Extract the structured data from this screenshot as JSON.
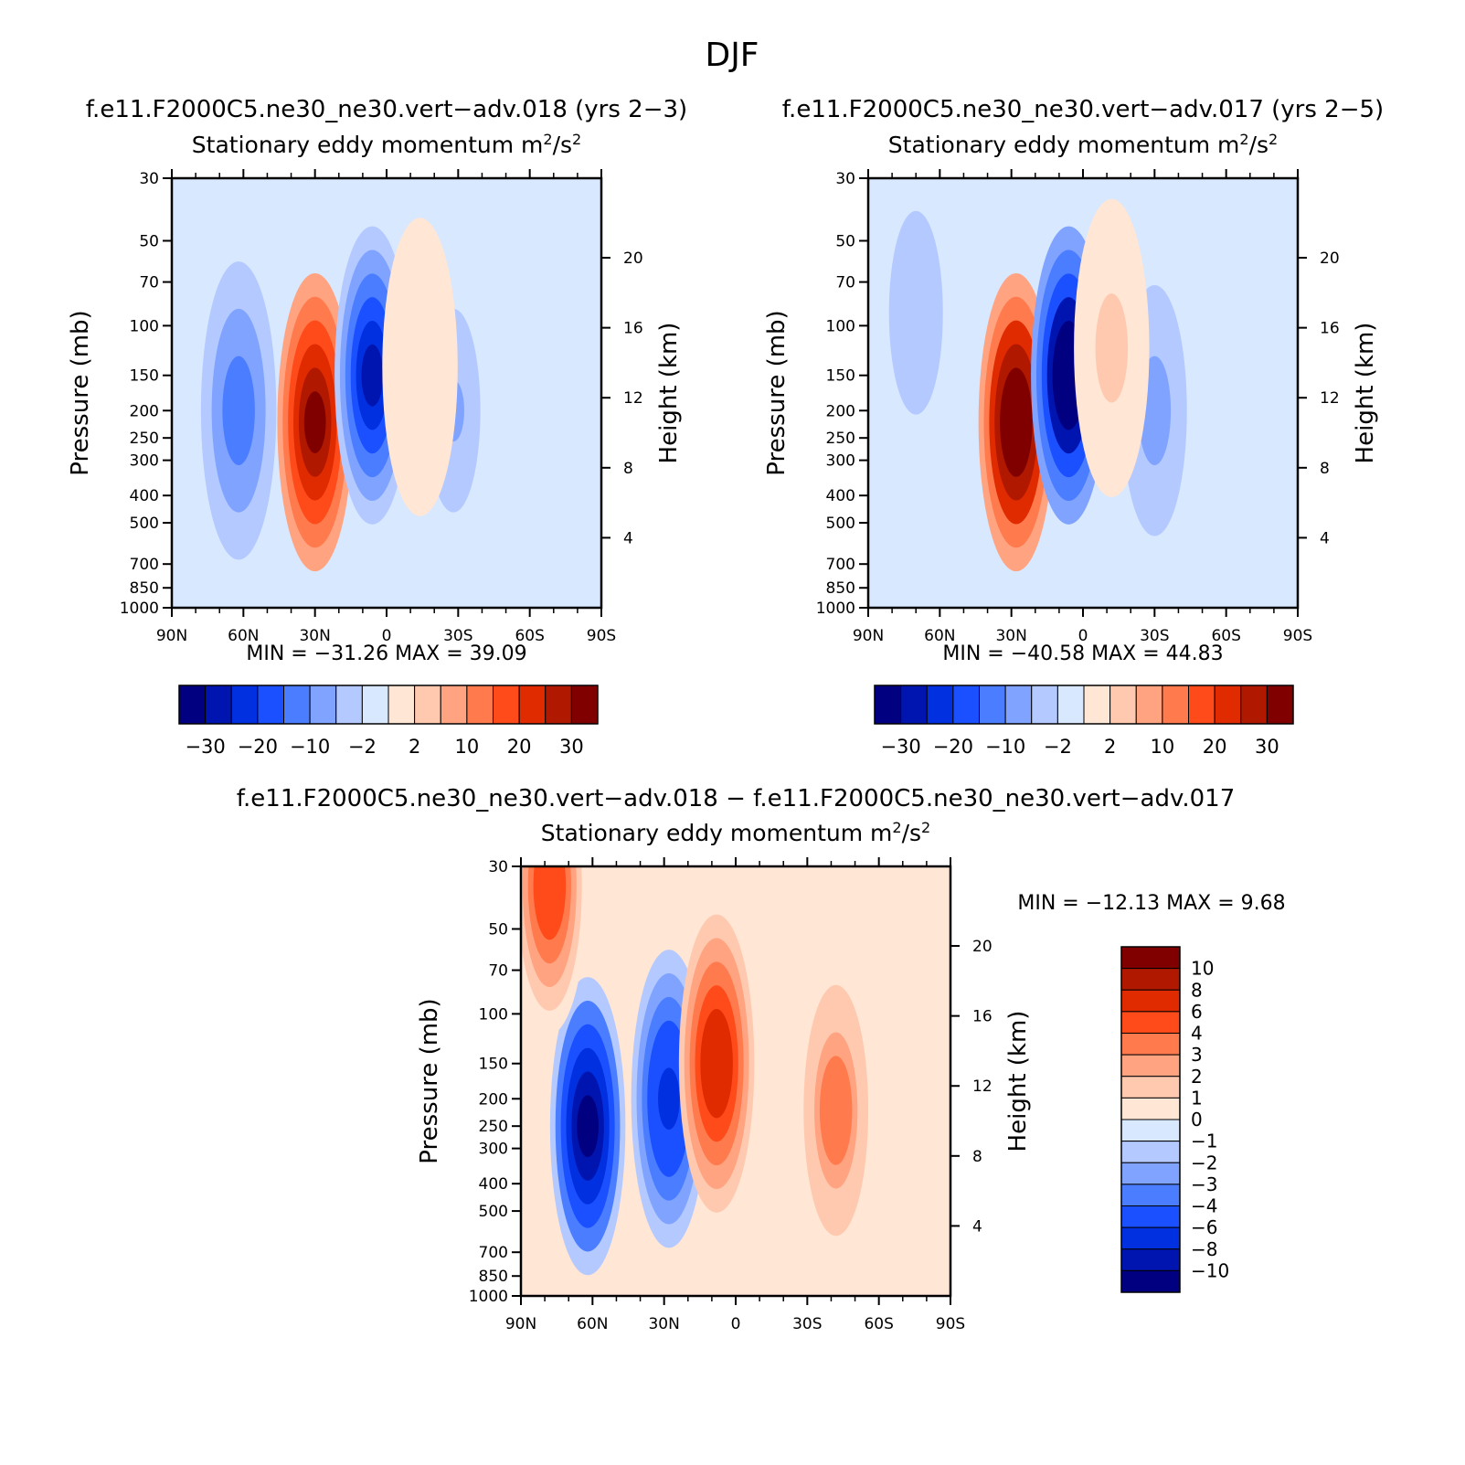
{
  "figure_title": "DJF",
  "colors": {
    "main_scale": [
      "#000080",
      "#0015b0",
      "#0030e0",
      "#1a50ff",
      "#4a7dff",
      "#7fa3ff",
      "#b3c9ff",
      "#d8e8ff",
      "#ffe6d5",
      "#ffc9b0",
      "#ffa380",
      "#ff7a4d",
      "#ff4a1a",
      "#e02a00",
      "#b01800",
      "#800000"
    ],
    "diff_scale": [
      "#000080",
      "#0015b0",
      "#0030e0",
      "#1a50ff",
      "#4a7dff",
      "#7fa3ff",
      "#b3c9ff",
      "#d8e8ff",
      "#ffe6d5",
      "#ffc9b0",
      "#ffa380",
      "#ff7a4d",
      "#ff4a1a",
      "#e02a00",
      "#b01800",
      "#800000"
    ]
  },
  "chart_data": [
    {
      "type": "heatmap",
      "case_title": "f.e11.F2000C5.ne30_ne30.vert−adv.018 (yrs 2−3)",
      "title": "Stationary eddy momentum",
      "units_base": "m",
      "units_exp1": "2",
      "units_mid": "/s",
      "units_exp2": "2",
      "xlabel": "",
      "ylabel": "Pressure (mb)",
      "ylabel_right": "Height (km)",
      "x_ticks": [
        "90N",
        "60N",
        "30N",
        "0",
        "30S",
        "60S",
        "90S"
      ],
      "y_ticks": [
        "30",
        "50",
        "70",
        "100",
        "150",
        "200",
        "250",
        "300",
        "400",
        "500",
        "700",
        "850",
        "1000"
      ],
      "y_ticks_right": [
        "20",
        "16",
        "12",
        "8",
        "4"
      ],
      "min_label": "MIN",
      "min_value": "−31.26",
      "max_label": "MAX",
      "max_value": "39.09",
      "eq": "=",
      "colorbar_labels": [
        "−30",
        "−20",
        "−10",
        "−2",
        "2",
        "10",
        "20",
        "30"
      ],
      "features": [
        {
          "lat": 62,
          "p": 200,
          "value": -14
        },
        {
          "lat": 30,
          "p": 220,
          "value": 36
        },
        {
          "lat": 6,
          "p": 150,
          "value": -29
        },
        {
          "lat": -28,
          "p": 200,
          "value": -5
        },
        {
          "lat": -14,
          "p": 140,
          "value": 2
        }
      ]
    },
    {
      "type": "heatmap",
      "case_title": "f.e11.F2000C5.ne30_ne30.vert−adv.017 (yrs 2−5)",
      "title": "Stationary eddy momentum",
      "units_base": "m",
      "units_exp1": "2",
      "units_mid": "/s",
      "units_exp2": "2",
      "xlabel": "",
      "ylabel": "Pressure (mb)",
      "ylabel_right": "Height (km)",
      "x_ticks": [
        "90N",
        "60N",
        "30N",
        "0",
        "30S",
        "60S",
        "90S"
      ],
      "y_ticks": [
        "30",
        "50",
        "70",
        "100",
        "150",
        "200",
        "250",
        "300",
        "400",
        "500",
        "700",
        "850",
        "1000"
      ],
      "y_ticks_right": [
        "20",
        "16",
        "12",
        "8",
        "4"
      ],
      "min_label": "MIN",
      "min_value": "−40.58",
      "max_label": "MAX",
      "max_value": "44.83",
      "eq": "=",
      "colorbar_labels": [
        "−30",
        "−20",
        "−10",
        "−2",
        "2",
        "10",
        "20",
        "30"
      ],
      "features": [
        {
          "lat": 70,
          "p": 90,
          "value": -4
        },
        {
          "lat": 28,
          "p": 220,
          "value": 42
        },
        {
          "lat": 6,
          "p": 150,
          "value": -38
        },
        {
          "lat": -30,
          "p": 200,
          "value": -6
        },
        {
          "lat": -12,
          "p": 120,
          "value": 3
        }
      ]
    },
    {
      "type": "heatmap",
      "case_title": "f.e11.F2000C5.ne30_ne30.vert−adv.018 − f.e11.F2000C5.ne30_ne30.vert−adv.017",
      "title": "Stationary eddy momentum",
      "units_base": "m",
      "units_exp1": "2",
      "units_mid": "/s",
      "units_exp2": "2",
      "xlabel": "",
      "ylabel": "Pressure (mb)",
      "ylabel_right": "Height (km)",
      "x_ticks": [
        "90N",
        "60N",
        "30N",
        "0",
        "30S",
        "60S",
        "90S"
      ],
      "y_ticks": [
        "30",
        "50",
        "70",
        "100",
        "150",
        "200",
        "250",
        "300",
        "400",
        "500",
        "700",
        "850",
        "1000"
      ],
      "y_ticks_right": [
        "20",
        "16",
        "12",
        "8",
        "4"
      ],
      "min_label": "MIN",
      "min_value": "−12.13",
      "max_label": "MAX",
      "max_value": "9.68",
      "eq": "=",
      "colorbar_labels": [
        "10",
        "8",
        "6",
        "4",
        "3",
        "2",
        "1",
        "0",
        "−1",
        "−2",
        "−3",
        "−4",
        "−6",
        "−8",
        "−10"
      ],
      "features": [
        {
          "lat": 62,
          "p": 250,
          "value": -11
        },
        {
          "lat": 28,
          "p": 200,
          "value": -6
        },
        {
          "lat": 8,
          "p": 150,
          "value": 8
        },
        {
          "lat": -42,
          "p": 220,
          "value": 4
        },
        {
          "lat": 78,
          "p": 35,
          "value": 5
        }
      ]
    }
  ]
}
